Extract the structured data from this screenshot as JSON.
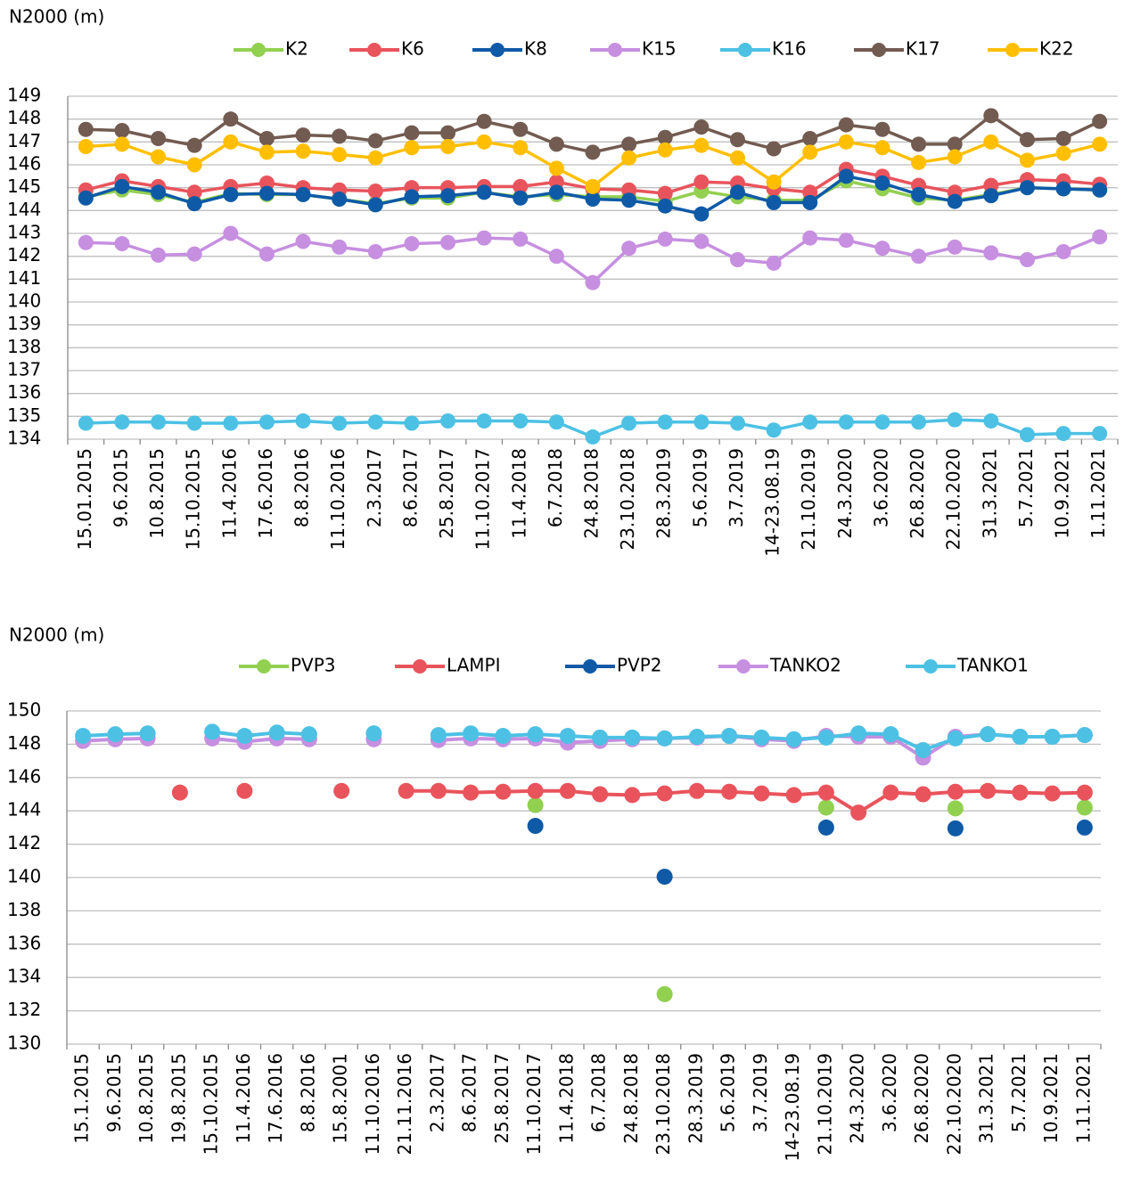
{
  "chart_data": [
    {
      "type": "line",
      "y_label": "N2000 (m)",
      "categories": [
        "15.01.2015",
        "9.6.2015",
        "10.8.2015",
        "15.10.2015",
        "11.4.2016",
        "17.6.2016",
        "8.8.2016",
        "11.10.2016",
        "2.3.2017",
        "8.6.2017",
        "25.8.2017",
        "11.10.2017",
        "11.4.2018",
        "6.7.2018",
        "24.8.2018",
        "23.10.2018",
        "28.3.2019",
        "5.6.2019",
        "3.7.2019",
        "14-23.08.19",
        "21.10.2019",
        "24.3.2020",
        "3.6.2020",
        "26.8.2020",
        "22.10.2020",
        "31.3.2021",
        "5.7.2021",
        "10.9.2021",
        "1.11.2021"
      ],
      "ylim": [
        134,
        149
      ],
      "yticks": [
        134,
        135,
        136,
        137,
        138,
        139,
        140,
        141,
        142,
        143,
        144,
        145,
        146,
        147,
        148,
        149
      ],
      "grid": true,
      "legend": "top",
      "series": [
        {
          "name": "K2",
          "color": "#92d050",
          "values": [
            144.6,
            144.9,
            144.7,
            144.35,
            144.75,
            144.7,
            144.7,
            144.5,
            144.3,
            144.55,
            144.55,
            144.8,
            144.6,
            144.7,
            144.6,
            144.6,
            144.4,
            144.85,
            144.6,
            144.45,
            144.45,
            145.3,
            144.95,
            144.55,
            144.45,
            144.7,
            145.0,
            144.95,
            144.9
          ]
        },
        {
          "name": "K6",
          "color": "#e9545c",
          "values": [
            144.9,
            145.3,
            145.05,
            144.8,
            145.05,
            145.2,
            145.0,
            144.9,
            144.85,
            145.0,
            145.0,
            145.05,
            145.05,
            145.25,
            144.95,
            144.9,
            144.75,
            145.25,
            145.2,
            144.95,
            144.8,
            145.8,
            145.5,
            145.1,
            144.8,
            145.1,
            145.35,
            145.3,
            145.15
          ]
        },
        {
          "name": "K8",
          "color": "#0e5aa7",
          "values": [
            144.55,
            145.05,
            144.8,
            144.3,
            144.7,
            144.75,
            144.7,
            144.5,
            144.25,
            144.6,
            144.65,
            144.8,
            144.55,
            144.8,
            144.5,
            144.45,
            144.2,
            143.85,
            144.8,
            144.35,
            144.35,
            145.5,
            145.2,
            144.7,
            144.4,
            144.65,
            145.0,
            144.95,
            144.9
          ]
        },
        {
          "name": "K15",
          "color": "#c68fe0",
          "values": [
            142.6,
            142.55,
            142.05,
            142.1,
            143.0,
            142.1,
            142.65,
            142.4,
            142.2,
            142.55,
            142.6,
            142.8,
            142.75,
            142.0,
            140.85,
            142.35,
            142.75,
            142.65,
            141.85,
            141.7,
            142.8,
            142.7,
            142.35,
            142.0,
            142.4,
            142.15,
            141.85,
            142.2,
            142.85
          ]
        },
        {
          "name": "K16",
          "color": "#4cc1e4",
          "values": [
            134.7,
            134.75,
            134.75,
            134.7,
            134.7,
            134.75,
            134.8,
            134.7,
            134.75,
            134.7,
            134.8,
            134.8,
            134.8,
            134.75,
            134.1,
            134.7,
            134.75,
            134.75,
            134.7,
            134.4,
            134.75,
            134.75,
            134.75,
            134.75,
            134.85,
            134.8,
            134.2,
            134.25,
            134.25
          ]
        },
        {
          "name": "K17",
          "color": "#725b51",
          "values": [
            147.55,
            147.5,
            147.15,
            146.85,
            148.0,
            147.15,
            147.3,
            147.25,
            147.05,
            147.4,
            147.4,
            147.9,
            147.55,
            146.9,
            146.55,
            146.9,
            147.2,
            147.65,
            147.1,
            146.7,
            147.15,
            147.75,
            147.55,
            146.9,
            146.9,
            148.15,
            147.1,
            147.15,
            147.9
          ]
        },
        {
          "name": "K22",
          "color": "#ffbf00",
          "values": [
            146.8,
            146.9,
            146.35,
            146.0,
            147.0,
            146.55,
            146.6,
            146.45,
            146.3,
            146.75,
            146.8,
            147.0,
            146.75,
            145.85,
            145.05,
            146.3,
            146.65,
            146.85,
            146.3,
            145.25,
            146.55,
            147.0,
            146.75,
            146.1,
            146.35,
            147.0,
            146.2,
            146.5,
            146.9
          ]
        }
      ]
    },
    {
      "type": "line",
      "y_label": "N2000 (m)",
      "categories": [
        "15.1.2015",
        "9.6.2015",
        "10.8.2015",
        "19.8.2015",
        "15.10.2015",
        "11.4.2016",
        "17.6.2016",
        "8.8.2016",
        "15.8.2001",
        "11.10.2016",
        "21.11.2016",
        "2.3.2017",
        "8.6.2017",
        "25.8.2017",
        "11.10.2017",
        "11.4.2018",
        "6.7.2018",
        "24.8.2018",
        "23.10.2018",
        "28.3.2019",
        "5.6.2019",
        "3.7.2019",
        "14-23.08.19",
        "21.10.2019",
        "24.3.2020",
        "3.6.2020",
        "26.8.2020",
        "22.10.2020",
        "31.3.2021",
        "5.7.2021",
        "10.9.2021",
        "1.11.2021"
      ],
      "ylim": [
        130,
        150
      ],
      "yticks": [
        130,
        132,
        134,
        136,
        138,
        140,
        142,
        144,
        146,
        148,
        150
      ],
      "grid": true,
      "legend": "top",
      "series": [
        {
          "name": "PVP3",
          "color": "#92d050",
          "values": [
            null,
            null,
            null,
            null,
            null,
            null,
            null,
            null,
            null,
            null,
            null,
            null,
            null,
            null,
            144.35,
            null,
            null,
            null,
            133.0,
            null,
            null,
            null,
            null,
            144.2,
            null,
            null,
            null,
            144.15,
            null,
            null,
            null,
            144.2
          ]
        },
        {
          "name": "LAMPI",
          "color": "#e9545c",
          "values": [
            null,
            null,
            null,
            145.1,
            null,
            145.2,
            null,
            null,
            145.2,
            null,
            145.2,
            145.2,
            145.1,
            145.15,
            145.2,
            145.2,
            145.0,
            144.95,
            145.05,
            145.2,
            145.15,
            145.05,
            144.95,
            145.1,
            143.9,
            145.1,
            145.0,
            145.15,
            145.2,
            145.1,
            145.05,
            145.1
          ]
        },
        {
          "name": "PVP2",
          "color": "#0e5aa7",
          "values": [
            null,
            null,
            null,
            null,
            null,
            null,
            null,
            null,
            null,
            null,
            null,
            null,
            null,
            null,
            143.1,
            null,
            null,
            null,
            140.05,
            null,
            null,
            null,
            null,
            143.0,
            null,
            null,
            null,
            142.95,
            null,
            null,
            null,
            143.0
          ]
        },
        {
          "name": "TANKO2",
          "color": "#c68fe0",
          "values": [
            148.2,
            148.3,
            148.35,
            null,
            148.35,
            148.15,
            148.35,
            148.3,
            null,
            148.3,
            null,
            148.25,
            148.35,
            148.3,
            148.35,
            148.1,
            148.2,
            148.3,
            148.35,
            148.4,
            148.5,
            148.3,
            148.2,
            148.5,
            148.45,
            148.45,
            147.2,
            148.45,
            148.6,
            148.45,
            148.45,
            148.55
          ]
        },
        {
          "name": "TANKO1",
          "color": "#4cc1e4",
          "values": [
            148.5,
            148.6,
            148.65,
            null,
            148.75,
            148.5,
            148.7,
            148.6,
            null,
            148.65,
            null,
            148.55,
            148.65,
            148.5,
            148.6,
            148.5,
            148.4,
            148.4,
            148.35,
            148.45,
            148.5,
            148.4,
            148.3,
            148.4,
            148.65,
            148.6,
            147.65,
            148.35,
            148.6,
            148.45,
            148.45,
            148.55
          ]
        }
      ]
    }
  ]
}
